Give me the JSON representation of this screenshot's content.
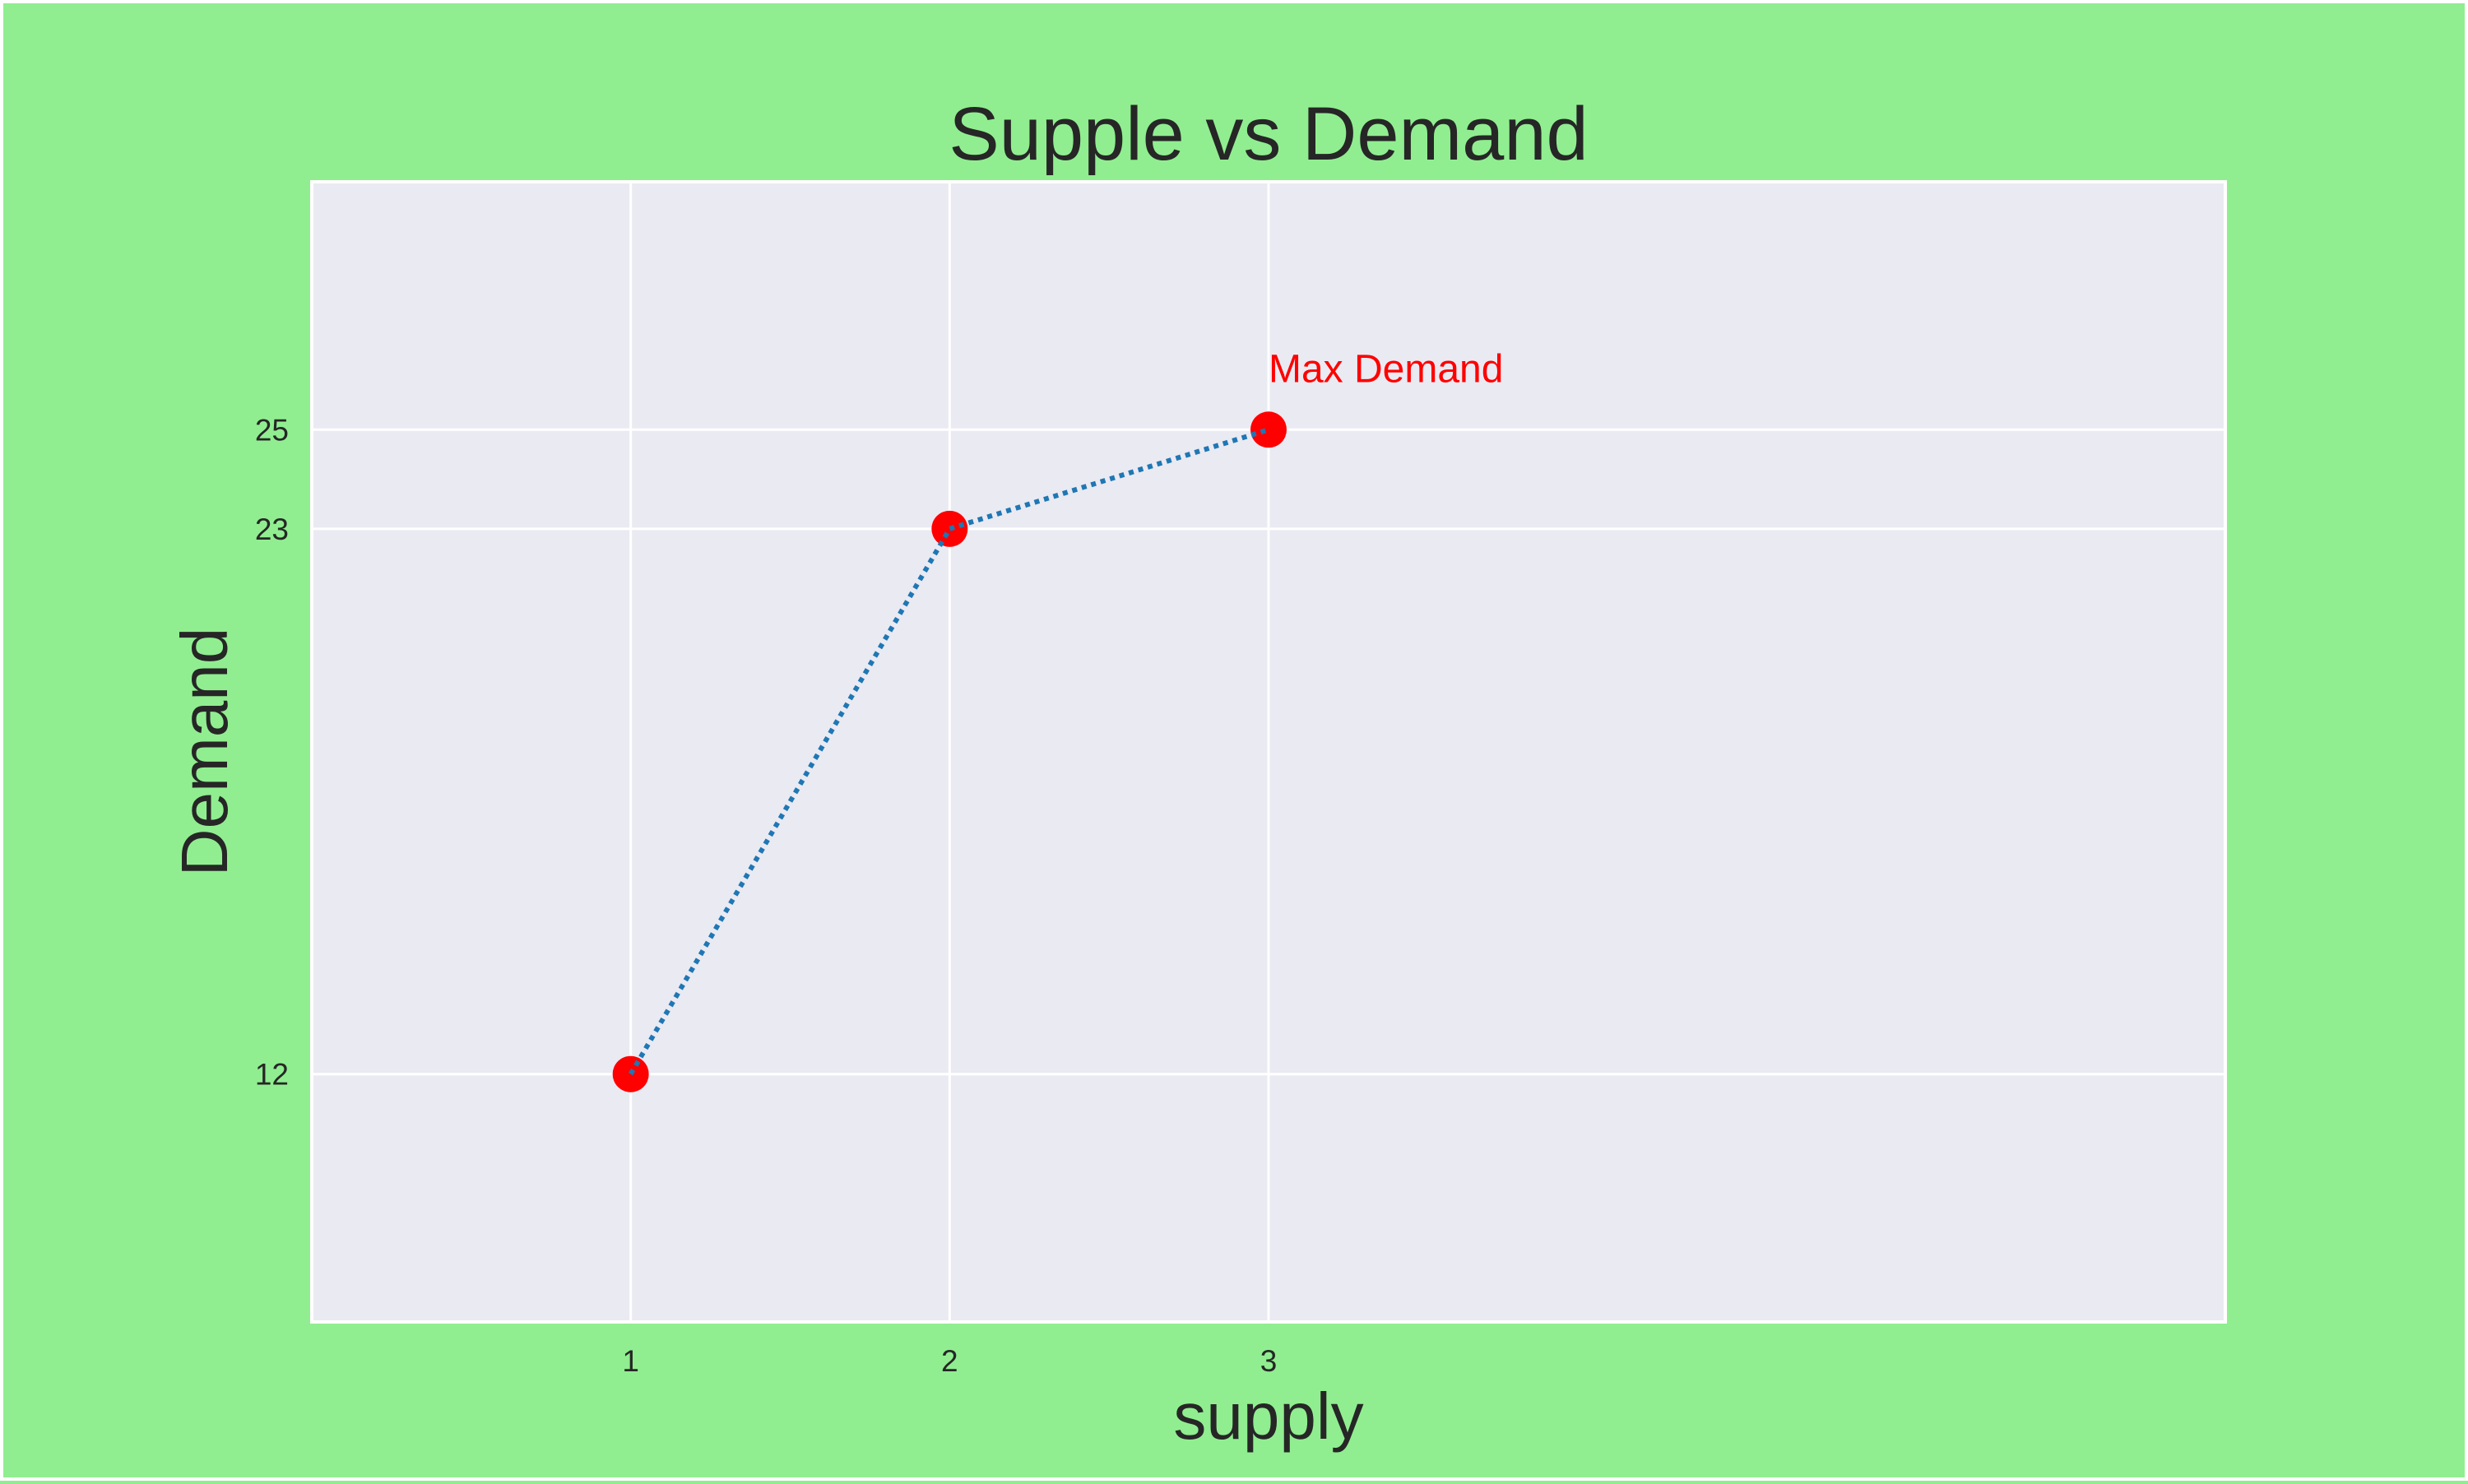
{
  "chart_data": {
    "type": "line",
    "title": "Supple vs Demand",
    "xlabel": "supply",
    "ylabel": "Demand",
    "x": [
      1,
      2,
      3
    ],
    "series": [
      {
        "values": [
          12,
          23,
          25
        ]
      }
    ],
    "xticks": [
      "1",
      "2",
      "3"
    ],
    "yticks": [
      "12",
      "23",
      "25"
    ],
    "xlim": [
      0,
      6
    ],
    "ylim": [
      7,
      30
    ],
    "grid": true,
    "line_style": "dotted",
    "line_color": "#1f77b4",
    "marker_color": "#ff0000",
    "plot_background": "#eaeaf2",
    "figure_background": "#90ee90",
    "annotations": [
      {
        "text": "Max Demand",
        "x": 3,
        "y": 25,
        "color": "#ff0000"
      }
    ]
  }
}
